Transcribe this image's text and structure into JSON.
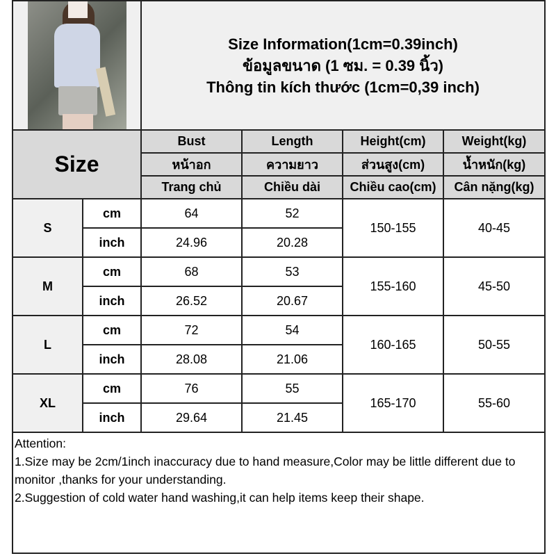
{
  "title": {
    "line1": "Size Information(1cm=0.39inch)",
    "line2": "ข้อมูลขนาด (1 ซม. = 0.39 นิ้ว)",
    "line3": "Thông tin kích thước (1cm=0,39 inch)"
  },
  "header": {
    "size_label": "Size",
    "columns": [
      {
        "en": "Bust",
        "th": "หน้าอก",
        "vi": "Trang chủ"
      },
      {
        "en": "Length",
        "th": "ความยาว",
        "vi": "Chiều dài"
      },
      {
        "en": "Height(cm)",
        "th": "ส่วนสูง(cm)",
        "vi": "Chiều cao(cm)"
      },
      {
        "en": "Weight(kg)",
        "th": "น้ำหนัก(kg)",
        "vi": "Cân nặng(kg)"
      }
    ]
  },
  "rows": [
    {
      "size": "S",
      "unit_cm": "cm",
      "unit_in": "inch",
      "bust_cm": "64",
      "length_cm": "52",
      "bust_in": "24.96",
      "length_in": "20.28",
      "height": "150-155",
      "weight": "40-45"
    },
    {
      "size": "M",
      "unit_cm": "cm",
      "unit_in": "inch",
      "bust_cm": "68",
      "length_cm": "53",
      "bust_in": "26.52",
      "length_in": "20.67",
      "height": "155-160",
      "weight": "45-50"
    },
    {
      "size": "L",
      "unit_cm": "cm",
      "unit_in": "inch",
      "bust_cm": "72",
      "length_cm": "54",
      "bust_in": "28.08",
      "length_in": "21.06",
      "height": "160-165",
      "weight": "50-55"
    },
    {
      "size": "XL",
      "unit_cm": "cm",
      "unit_in": "inch",
      "bust_cm": "76",
      "length_cm": "55",
      "bust_in": "29.64",
      "length_in": "21.45",
      "height": "165-170",
      "weight": "55-60"
    }
  ],
  "notes": {
    "heading": "Attention:",
    "note1": "1.Size may be 2cm/1inch inaccuracy due to hand measure,Color may be little different due to monitor ,thanks for your understanding.",
    "note2": "2.Suggestion of cold water hand washing,it can help items keep their shape."
  }
}
